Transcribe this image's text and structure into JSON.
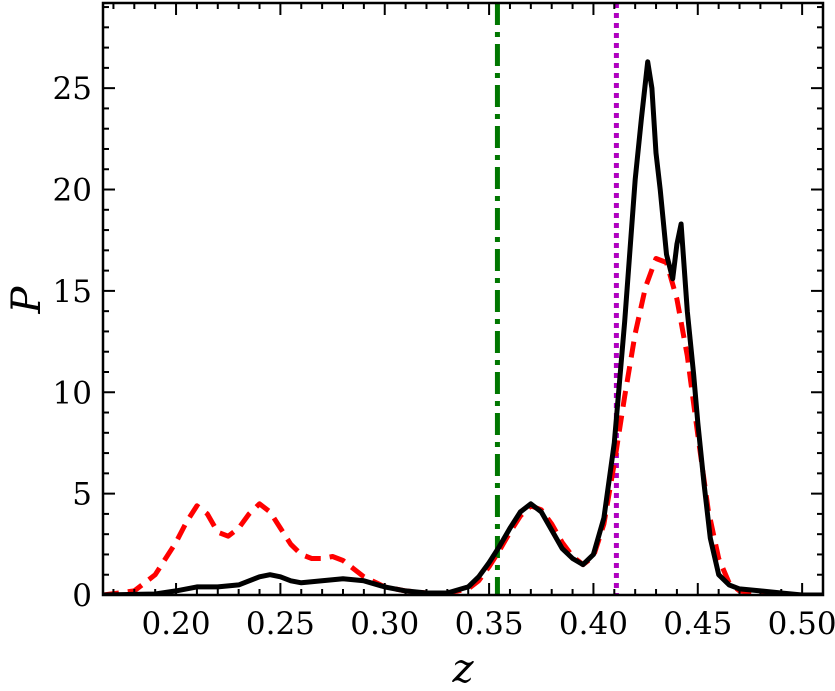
{
  "chart_data": {
    "type": "line",
    "xlabel": "z",
    "ylabel": "P",
    "xlim": [
      0.165,
      0.51
    ],
    "ylim": [
      0,
      29.2
    ],
    "x_ticks": [
      0.2,
      0.25,
      0.3,
      0.35,
      0.4,
      0.45,
      0.5
    ],
    "x_tick_labels": [
      "0.20",
      "0.25",
      "0.30",
      "0.35",
      "0.40",
      "0.45",
      "0.50"
    ],
    "y_ticks": [
      0,
      5,
      10,
      15,
      20,
      25
    ],
    "y_tick_labels": [
      "0",
      "5",
      "10",
      "15",
      "20",
      "25"
    ],
    "grid": false,
    "vlines": [
      {
        "x": 0.354,
        "color": "#007700",
        "style": "dashdot"
      },
      {
        "x": 0.411,
        "color": "#b000c0",
        "style": "dotted"
      }
    ],
    "series": [
      {
        "color": "#ff0000",
        "style": "dashed",
        "x": [
          0.165,
          0.18,
          0.19,
          0.2,
          0.205,
          0.21,
          0.215,
          0.22,
          0.225,
          0.23,
          0.235,
          0.24,
          0.245,
          0.25,
          0.255,
          0.26,
          0.265,
          0.27,
          0.275,
          0.28,
          0.285,
          0.29,
          0.3,
          0.31,
          0.32,
          0.33,
          0.34,
          0.345,
          0.35,
          0.355,
          0.36,
          0.365,
          0.37,
          0.375,
          0.38,
          0.385,
          0.39,
          0.395,
          0.4,
          0.405,
          0.41,
          0.415,
          0.42,
          0.425,
          0.43,
          0.435,
          0.44,
          0.445,
          0.45,
          0.455,
          0.46,
          0.465,
          0.47,
          0.48,
          0.49,
          0.5,
          0.51
        ],
        "y": [
          0,
          0.2,
          1.0,
          2.6,
          3.6,
          4.4,
          4.0,
          3.1,
          2.9,
          3.3,
          4.0,
          4.5,
          4.1,
          3.3,
          2.5,
          2.0,
          1.8,
          1.8,
          1.9,
          1.7,
          1.3,
          0.9,
          0.4,
          0.2,
          0.1,
          0.1,
          0.3,
          0.7,
          1.4,
          2.2,
          3.1,
          3.9,
          4.4,
          4.2,
          3.5,
          2.6,
          1.9,
          1.5,
          1.9,
          3.5,
          6.5,
          9.8,
          12.9,
          15.2,
          16.6,
          16.4,
          14.6,
          11.8,
          7.9,
          4.2,
          1.8,
          0.6,
          0.2,
          0.05,
          0,
          0,
          0
        ]
      },
      {
        "color": "#000000",
        "style": "solid",
        "x": [
          0.165,
          0.19,
          0.2,
          0.21,
          0.22,
          0.23,
          0.24,
          0.245,
          0.25,
          0.255,
          0.26,
          0.27,
          0.28,
          0.29,
          0.3,
          0.31,
          0.32,
          0.33,
          0.34,
          0.345,
          0.35,
          0.355,
          0.36,
          0.365,
          0.37,
          0.375,
          0.38,
          0.385,
          0.39,
          0.395,
          0.4,
          0.405,
          0.41,
          0.415,
          0.42,
          0.423,
          0.426,
          0.428,
          0.43,
          0.432,
          0.435,
          0.438,
          0.44,
          0.442,
          0.445,
          0.448,
          0.45,
          0.453,
          0.456,
          0.46,
          0.465,
          0.47,
          0.48,
          0.49,
          0.5,
          0.51
        ],
        "y": [
          0,
          0.05,
          0.2,
          0.4,
          0.4,
          0.5,
          0.9,
          1.0,
          0.9,
          0.7,
          0.6,
          0.7,
          0.8,
          0.7,
          0.4,
          0.2,
          0.1,
          0.1,
          0.4,
          0.9,
          1.6,
          2.4,
          3.3,
          4.1,
          4.5,
          4.1,
          3.2,
          2.3,
          1.8,
          1.5,
          2.0,
          3.8,
          7.5,
          13.5,
          20.5,
          23.5,
          26.3,
          25.0,
          21.8,
          20.0,
          16.8,
          15.6,
          17.3,
          18.3,
          14.0,
          10.9,
          8.5,
          5.5,
          2.8,
          1.0,
          0.5,
          0.3,
          0.2,
          0.1,
          0,
          0
        ]
      }
    ]
  }
}
